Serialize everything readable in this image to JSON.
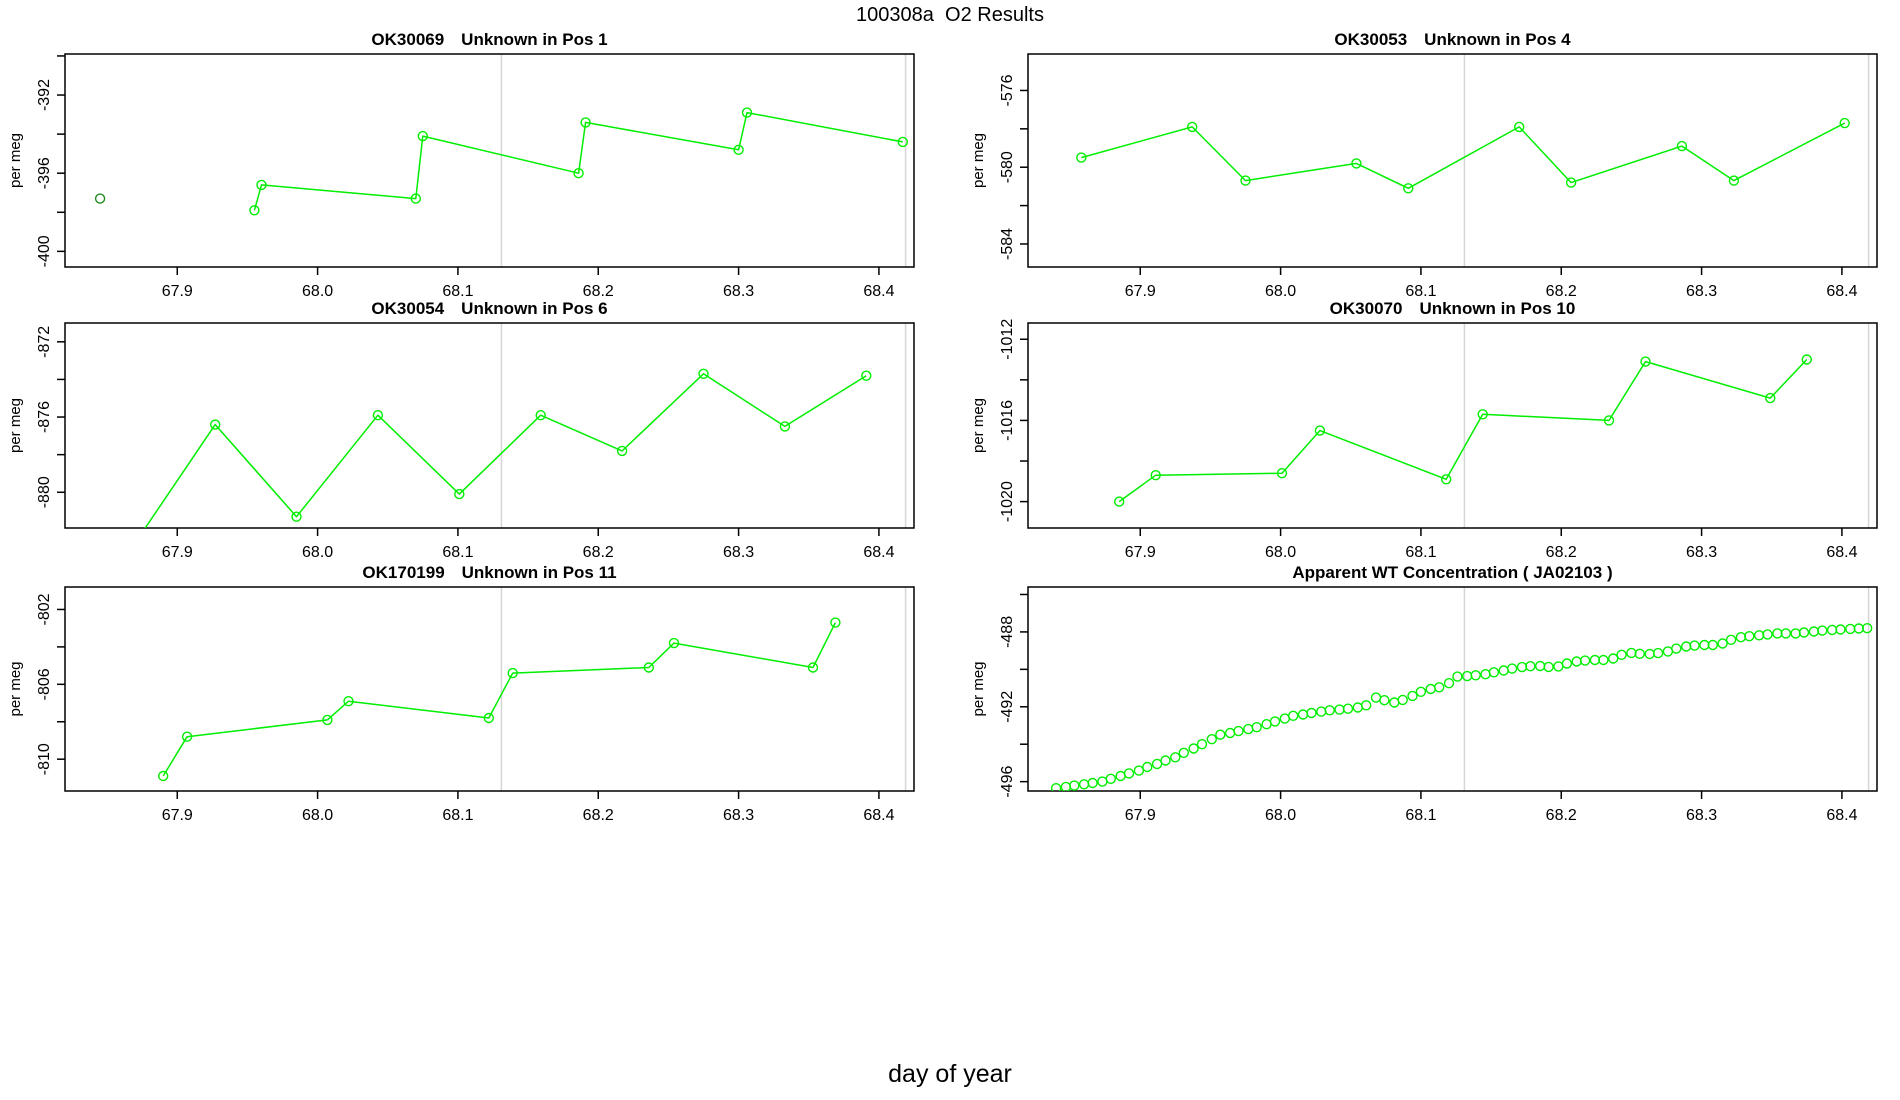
{
  "figure": {
    "title": "100308a  O2 Results",
    "xlabel": "day of year",
    "ylabel": "per meg"
  },
  "style": {
    "series_color": "#00EE00",
    "isolated_point_color": "#228B22",
    "guide_line_color": "#D6D6D6",
    "axis_color": "#000000"
  },
  "chart_data": {
    "type": "line",
    "x_axis": {
      "label": "day of year",
      "range": [
        67.82,
        68.425
      ],
      "ticks": [
        67.9,
        68.0,
        68.1,
        68.2,
        68.3,
        68.4
      ],
      "tick_labels": [
        "67.9",
        "68.0",
        "68.1",
        "68.2",
        "68.3",
        "68.4"
      ]
    },
    "guide_vlines": [
      68.131,
      68.419
    ],
    "panels": [
      {
        "title_id": "OK30069",
        "title_desc": "Unknown in Pos 1",
        "ylabel": "per meg",
        "ylim": [
          -389.9,
          -400.8
        ],
        "yticks": [
          [
            -390,
            ""
          ],
          [
            -392,
            "-392"
          ],
          [
            -394,
            ""
          ],
          [
            -396,
            "-396"
          ],
          [
            -398,
            ""
          ],
          [
            -400,
            "-400"
          ]
        ],
        "series": [
          {
            "name": "run-trace",
            "type": "line+marker",
            "color": "#00EE00",
            "points": [
              [
                67.955,
                -397.9
              ],
              [
                67.96,
                -396.6
              ],
              [
                68.07,
                -397.3
              ],
              [
                68.075,
                -394.1
              ],
              [
                68.186,
                -396.0
              ],
              [
                68.191,
                -393.4
              ],
              [
                68.3,
                -394.8
              ],
              [
                68.306,
                -392.9
              ],
              [
                68.417,
                -394.4
              ]
            ]
          },
          {
            "name": "isolated-point",
            "type": "marker",
            "color": "#228B22",
            "points": [
              [
                67.845,
                -397.3
              ]
            ]
          }
        ]
      },
      {
        "title_id": "OK30053",
        "title_desc": "Unknown in Pos 4",
        "ylabel": "per meg",
        "ylim": [
          -574.1,
          -585.2
        ],
        "yticks": [
          [
            -576,
            "-576"
          ],
          [
            -578,
            ""
          ],
          [
            -580,
            "-580"
          ],
          [
            -582,
            ""
          ],
          [
            -584,
            "-584"
          ]
        ],
        "series": [
          {
            "name": "run-trace",
            "type": "line+marker",
            "color": "#00EE00",
            "points": [
              [
                67.858,
                -579.5
              ],
              [
                67.937,
                -577.9
              ],
              [
                67.975,
                -580.7
              ],
              [
                68.054,
                -579.8
              ],
              [
                68.091,
                -581.1
              ],
              [
                68.17,
                -577.9
              ],
              [
                68.207,
                -580.8
              ],
              [
                68.286,
                -578.9
              ],
              [
                68.323,
                -580.7
              ],
              [
                68.402,
                -577.7
              ]
            ]
          }
        ]
      },
      {
        "title_id": "OK30054",
        "title_desc": "Unknown in Pos 6",
        "ylabel": "per meg",
        "ylim": [
          -871.0,
          -881.9
        ],
        "yticks": [
          [
            -872,
            "-872"
          ],
          [
            -874,
            ""
          ],
          [
            -876,
            "-876"
          ],
          [
            -878,
            ""
          ],
          [
            -880,
            "-880"
          ]
        ],
        "series": [
          {
            "name": "run-trace",
            "type": "line+marker",
            "color": "#00EE00",
            "points": [
              [
                67.869,
                -882.8
              ],
              [
                67.927,
                -876.4
              ],
              [
                67.985,
                -881.3
              ],
              [
                68.043,
                -875.9
              ],
              [
                68.101,
                -880.1
              ],
              [
                68.159,
                -875.9
              ],
              [
                68.217,
                -877.8
              ],
              [
                68.275,
                -873.7
              ],
              [
                68.333,
                -876.5
              ],
              [
                68.391,
                -873.8
              ]
            ]
          }
        ]
      },
      {
        "title_id": "OK30070",
        "title_desc": "Unknown in Pos 10",
        "ylabel": "per meg",
        "ylim": [
          -1011.2,
          -1021.3
        ],
        "yticks": [
          [
            -1012,
            "-1012"
          ],
          [
            -1014,
            ""
          ],
          [
            -1016,
            "-1016"
          ],
          [
            -1018,
            ""
          ],
          [
            -1020,
            "-1020"
          ]
        ],
        "series": [
          {
            "name": "run-trace",
            "type": "line+marker",
            "color": "#00EE00",
            "points": [
              [
                67.885,
                -1020.0
              ],
              [
                67.911,
                -1018.7
              ],
              [
                68.001,
                -1018.6
              ],
              [
                68.028,
                -1016.5
              ],
              [
                68.118,
                -1018.9
              ],
              [
                68.144,
                -1015.7
              ],
              [
                68.234,
                -1016.0
              ],
              [
                68.26,
                -1013.1
              ],
              [
                68.349,
                -1014.9
              ],
              [
                68.375,
                -1013.0
              ]
            ]
          }
        ]
      },
      {
        "title_id": "OK170199",
        "title_desc": "Unknown in Pos 11",
        "ylabel": "per meg",
        "ylim": [
          -800.8,
          -811.7
        ],
        "yticks": [
          [
            -802,
            "-802"
          ],
          [
            -804,
            ""
          ],
          [
            -806,
            "-806"
          ],
          [
            -808,
            ""
          ],
          [
            -810,
            "-810"
          ]
        ],
        "series": [
          {
            "name": "run-trace",
            "type": "line+marker",
            "color": "#00EE00",
            "points": [
              [
                67.89,
                -810.9
              ],
              [
                67.907,
                -808.8
              ],
              [
                68.007,
                -807.9
              ],
              [
                68.022,
                -806.9
              ],
              [
                68.122,
                -807.8
              ],
              [
                68.139,
                -805.4
              ],
              [
                68.236,
                -805.1
              ],
              [
                68.254,
                -803.8
              ],
              [
                68.353,
                -805.1
              ],
              [
                68.369,
                -802.7
              ]
            ]
          }
        ]
      },
      {
        "title_id": "",
        "title_desc": "Apparent WT Concentration ( JA02103 )",
        "ylabel": "per meg",
        "ylim": [
          -485.6,
          -496.5
        ],
        "yticks": [
          [
            -486,
            ""
          ],
          [
            -488,
            "-488"
          ],
          [
            -490,
            ""
          ],
          [
            -492,
            "-492"
          ],
          [
            -494,
            ""
          ],
          [
            -496,
            "-496"
          ]
        ],
        "series": [
          {
            "name": "wt-concentration-trace",
            "type": "marker",
            "color": "#00EE00",
            "points": [
              [
                67.84,
                -496.35
              ],
              [
                67.847,
                -496.28
              ],
              [
                67.853,
                -496.21
              ],
              [
                67.86,
                -496.14
              ],
              [
                67.866,
                -496.07
              ],
              [
                67.873,
                -496.0
              ],
              [
                67.879,
                -495.85
              ],
              [
                67.886,
                -495.7
              ],
              [
                67.892,
                -495.56
              ],
              [
                67.899,
                -495.41
              ],
              [
                67.905,
                -495.22
              ],
              [
                67.912,
                -495.05
              ],
              [
                67.918,
                -494.87
              ],
              [
                67.925,
                -494.7
              ],
              [
                67.931,
                -494.46
              ],
              [
                67.938,
                -494.23
              ],
              [
                67.944,
                -494.0
              ],
              [
                67.951,
                -493.73
              ],
              [
                67.957,
                -493.49
              ],
              [
                67.964,
                -493.4
              ],
              [
                67.97,
                -493.3
              ],
              [
                67.977,
                -493.19
              ],
              [
                67.983,
                -493.09
              ],
              [
                67.99,
                -492.93
              ],
              [
                67.996,
                -492.78
              ],
              [
                68.003,
                -492.63
              ],
              [
                68.009,
                -492.48
              ],
              [
                68.016,
                -492.41
              ],
              [
                68.022,
                -492.33
              ],
              [
                68.029,
                -492.26
              ],
              [
                68.035,
                -492.19
              ],
              [
                68.042,
                -492.15
              ],
              [
                68.048,
                -492.1
              ],
              [
                68.055,
                -492.04
              ],
              [
                68.061,
                -491.92
              ],
              [
                68.068,
                -491.51
              ],
              [
                68.074,
                -491.65
              ],
              [
                68.081,
                -491.77
              ],
              [
                68.087,
                -491.63
              ],
              [
                68.094,
                -491.42
              ],
              [
                68.1,
                -491.2
              ],
              [
                68.107,
                -491.05
              ],
              [
                68.113,
                -490.96
              ],
              [
                68.12,
                -490.74
              ],
              [
                68.126,
                -490.39
              ],
              [
                68.133,
                -490.36
              ],
              [
                68.139,
                -490.32
              ],
              [
                68.146,
                -490.26
              ],
              [
                68.152,
                -490.16
              ],
              [
                68.159,
                -490.06
              ],
              [
                68.165,
                -489.96
              ],
              [
                68.172,
                -489.88
              ],
              [
                68.178,
                -489.83
              ],
              [
                68.185,
                -489.82
              ],
              [
                68.191,
                -489.87
              ],
              [
                68.198,
                -489.84
              ],
              [
                68.204,
                -489.69
              ],
              [
                68.211,
                -489.58
              ],
              [
                68.217,
                -489.53
              ],
              [
                68.224,
                -489.5
              ],
              [
                68.23,
                -489.5
              ],
              [
                68.237,
                -489.42
              ],
              [
                68.243,
                -489.22
              ],
              [
                68.25,
                -489.12
              ],
              [
                68.256,
                -489.17
              ],
              [
                68.263,
                -489.18
              ],
              [
                68.269,
                -489.13
              ],
              [
                68.276,
                -489.04
              ],
              [
                68.282,
                -488.89
              ],
              [
                68.289,
                -488.78
              ],
              [
                68.295,
                -488.73
              ],
              [
                68.302,
                -488.7
              ],
              [
                68.308,
                -488.7
              ],
              [
                68.315,
                -488.62
              ],
              [
                68.321,
                -488.42
              ],
              [
                68.328,
                -488.28
              ],
              [
                68.334,
                -488.23
              ],
              [
                68.341,
                -488.18
              ],
              [
                68.347,
                -488.13
              ],
              [
                68.354,
                -488.08
              ],
              [
                68.36,
                -488.08
              ],
              [
                68.367,
                -488.08
              ],
              [
                68.373,
                -488.03
              ],
              [
                68.38,
                -487.98
              ],
              [
                68.386,
                -487.93
              ],
              [
                68.393,
                -487.89
              ],
              [
                68.399,
                -487.87
              ],
              [
                68.406,
                -487.84
              ],
              [
                68.412,
                -487.82
              ],
              [
                68.418,
                -487.8
              ]
            ]
          }
        ]
      }
    ]
  }
}
